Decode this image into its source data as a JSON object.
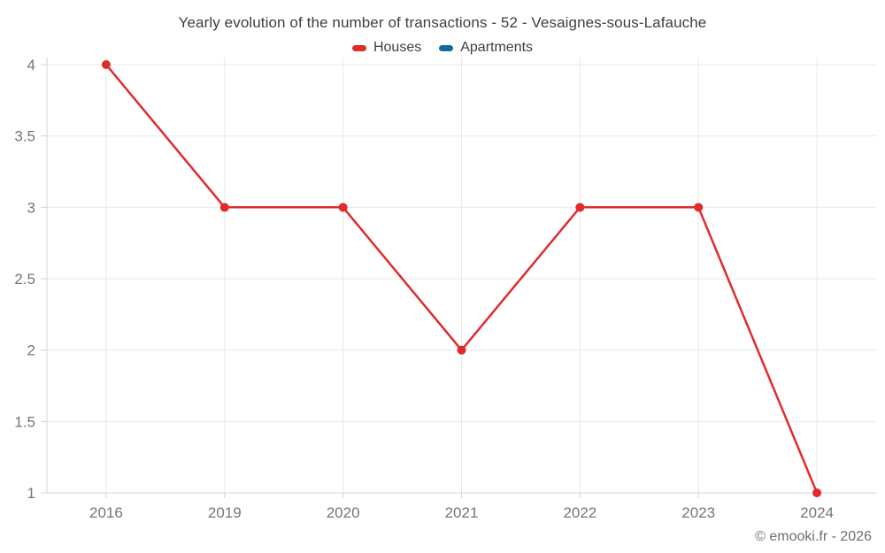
{
  "chart": {
    "title": "Yearly evolution of the number of transactions - 52 - Vesaignes-sous-Lafauche"
  },
  "chart_data": {
    "type": "line",
    "title": "Yearly evolution of the number of transactions - 52 - Vesaignes-sous-Lafauche",
    "x": [
      "2016",
      "2019",
      "2020",
      "2021",
      "2022",
      "2023",
      "2024"
    ],
    "series": [
      {
        "name": "Houses",
        "color": "#e02b2b",
        "values": [
          4,
          3,
          3,
          2,
          3,
          3,
          1
        ]
      },
      {
        "name": "Apartments",
        "color": "#106c9c",
        "values": []
      }
    ],
    "xlabel": "",
    "ylabel": "",
    "ylim": [
      1,
      4
    ],
    "yticks": [
      1,
      1.5,
      2,
      2.5,
      3,
      3.5,
      4
    ],
    "grid": true,
    "legend_position": "top",
    "colors": {
      "grid": "#e9e9e9",
      "axis": "#d4d4d4",
      "tick_label": "#757575"
    }
  },
  "footer": {
    "copyright": "© emooki.fr - 2026"
  }
}
